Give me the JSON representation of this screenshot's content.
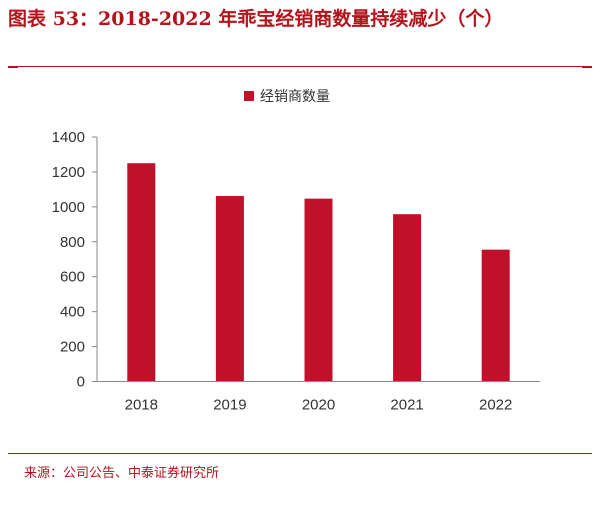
{
  "title": "图表 53：2018-2022 年乖宝经销商数量持续减少（个）",
  "source": "来源：公司公告、中泰证券研究所",
  "colors": {
    "accent": "#b5121b",
    "bar": "#c0102a"
  },
  "chart_data": {
    "type": "bar",
    "categories": [
      "2018",
      "2019",
      "2020",
      "2021",
      "2022"
    ],
    "series": [
      {
        "name": "经销商数量",
        "values": [
          1250,
          1062,
          1047,
          958,
          755
        ]
      }
    ],
    "ylim": [
      0,
      1400
    ],
    "yticks": [
      0,
      200,
      400,
      600,
      800,
      1000,
      1200,
      1400
    ],
    "grid": false,
    "legend_position": "top-center"
  }
}
